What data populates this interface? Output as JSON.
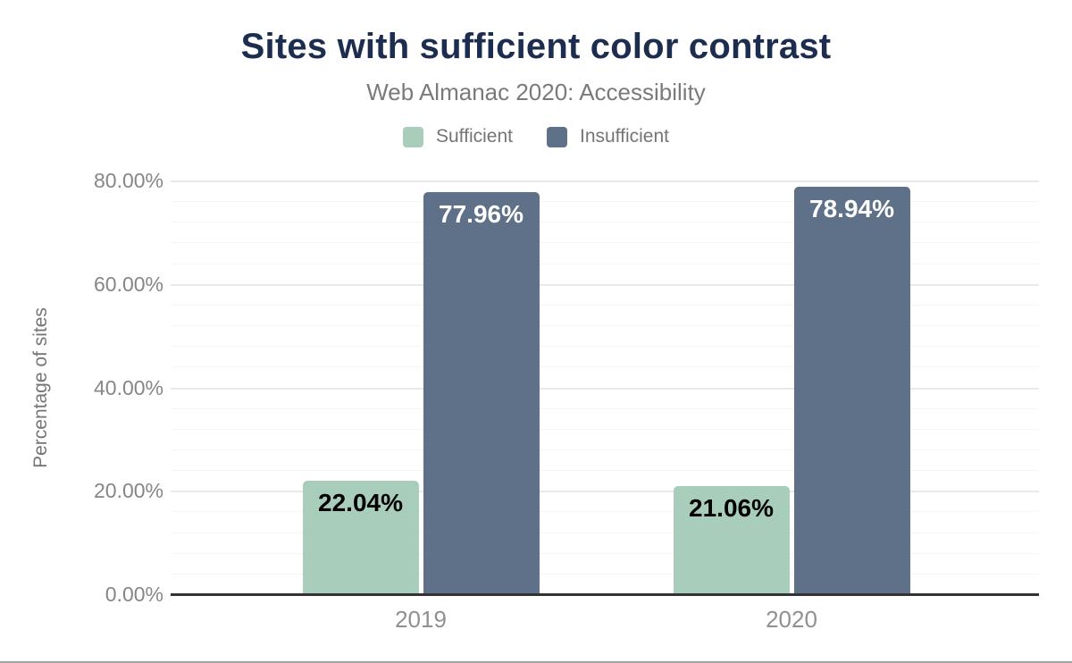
{
  "chart_data": {
    "type": "bar",
    "title": "Sites with sufficient color contrast",
    "subtitle": "Web Almanac 2020: Accessibility",
    "ylabel": "Percentage of sites",
    "categories": [
      "2019",
      "2020"
    ],
    "series": [
      {
        "name": "Sufficient",
        "color": "#a9cdbb",
        "value_text_color": "#000000",
        "values": [
          22.04,
          21.06
        ],
        "value_labels": [
          "22.04%",
          "21.06%"
        ]
      },
      {
        "name": "Insufficient",
        "color": "#5f7189",
        "value_text_color": "#ffffff",
        "values": [
          77.96,
          78.94
        ],
        "value_labels": [
          "77.96%",
          "78.94%"
        ]
      }
    ],
    "ylim": [
      0,
      80
    ],
    "y_ticks": [
      {
        "value": 0,
        "label": "0.00%"
      },
      {
        "value": 20,
        "label": "20.00%"
      },
      {
        "value": 40,
        "label": "40.00%"
      },
      {
        "value": 60,
        "label": "60.00%"
      },
      {
        "value": 80,
        "label": "80.00%"
      }
    ],
    "grid": {
      "shown": true,
      "minor_step": 4,
      "major_step": 20
    },
    "legend_position": "top"
  },
  "colors": {
    "title": "#1d2d4f",
    "subtitle": "#7a7a7a",
    "axis_line": "#333333",
    "gridline_minor": "#f5f5f5",
    "gridline_major": "#e9e9e9",
    "tick_text": "#868686"
  }
}
